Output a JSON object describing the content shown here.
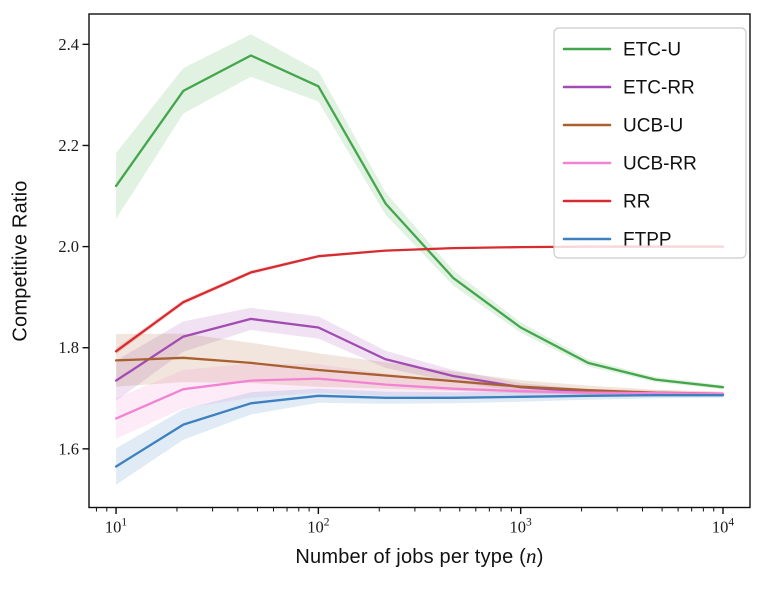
{
  "figure": {
    "background": "#ffffff",
    "ylabel": "Competitive Ratio",
    "xlabel_prefix": "Number of jobs per type (",
    "xlabel_var": "n",
    "xlabel_suffix": ")"
  },
  "chart_data": {
    "type": "line",
    "title": "",
    "xlabel": "Number of jobs per type (n)",
    "ylabel": "Competitive Ratio",
    "xscale": "log",
    "grid": false,
    "xlim": [
      7.35,
      13600
    ],
    "ylim": [
      1.484,
      2.46
    ],
    "yticks": [
      "1.6",
      "1.8",
      "2.0",
      "2.2",
      "2.4"
    ],
    "xticks": [
      {
        "value": 10,
        "base": "10",
        "exp": "1"
      },
      {
        "value": 100,
        "base": "10",
        "exp": "2"
      },
      {
        "value": 1000,
        "base": "10",
        "exp": "3"
      },
      {
        "value": 10000,
        "base": "10",
        "exp": "4"
      }
    ],
    "x": [
      10,
      21.5,
      46.4,
      100,
      215,
      464,
      1000,
      2154,
      4641,
      10000
    ],
    "band_alpha": 0.16,
    "series": [
      {
        "name": "ETC-U",
        "color": "#44a64b",
        "values": [
          2.12,
          2.308,
          2.378,
          2.317,
          2.085,
          1.938,
          1.84,
          1.77,
          1.737,
          1.722
        ],
        "band": [
          0.065,
          0.045,
          0.042,
          0.03,
          0.022,
          0.015,
          0.01,
          0.007,
          0.005,
          0.004
        ]
      },
      {
        "name": "ETC-RR",
        "color": "#a24cb3",
        "values": [
          1.735,
          1.822,
          1.857,
          1.84,
          1.777,
          1.744,
          1.722,
          1.713,
          1.709,
          1.707
        ],
        "band": [
          0.04,
          0.03,
          0.022,
          0.022,
          0.017,
          0.012,
          0.008,
          0.005,
          0.004,
          0.003
        ]
      },
      {
        "name": "UCB-U",
        "color": "#a8602e",
        "values": [
          1.775,
          1.78,
          1.77,
          1.756,
          1.745,
          1.734,
          1.723,
          1.716,
          1.711,
          1.709
        ],
        "band": [
          0.052,
          0.048,
          0.04,
          0.033,
          0.026,
          0.019,
          0.013,
          0.009,
          0.006,
          0.004
        ]
      },
      {
        "name": "UCB-RR",
        "color": "#f283d2",
        "values": [
          1.66,
          1.718,
          1.735,
          1.739,
          1.727,
          1.719,
          1.714,
          1.711,
          1.71,
          1.709
        ],
        "band": [
          0.04,
          0.038,
          0.034,
          0.028,
          0.022,
          0.016,
          0.011,
          0.008,
          0.006,
          0.004
        ]
      },
      {
        "name": "RR",
        "color": "#d62b2f",
        "values": [
          1.793,
          1.89,
          1.949,
          1.981,
          1.992,
          1.997,
          1.999,
          2.0,
          2.0,
          2.0
        ],
        "band": [
          0.006,
          0.005,
          0.004,
          0.003,
          0.002,
          0.002,
          0.001,
          0.001,
          0.001,
          0.001
        ]
      },
      {
        "name": "FTPP",
        "color": "#3c80c0",
        "values": [
          1.565,
          1.648,
          1.69,
          1.705,
          1.701,
          1.701,
          1.703,
          1.705,
          1.706,
          1.706
        ],
        "band": [
          0.036,
          0.03,
          0.022,
          0.014,
          0.012,
          0.011,
          0.01,
          0.008,
          0.006,
          0.005
        ]
      }
    ],
    "legend": {
      "position": "upper right",
      "entries": [
        "ETC-U",
        "ETC-RR",
        "UCB-U",
        "UCB-RR",
        "RR",
        "FTPP"
      ]
    }
  }
}
